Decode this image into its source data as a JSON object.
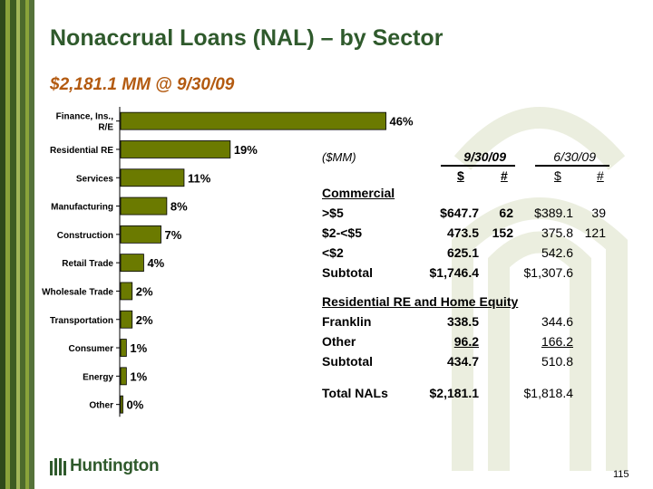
{
  "slide": {
    "title": "Nonaccrual Loans (NAL) – by Sector",
    "subtitle": "$2,181.1 MM @ 9/30/09",
    "page_number": "115",
    "logo_text": "Huntington",
    "colors": {
      "title_green": "#2f5a2c",
      "subtitle_orange": "#b35a10",
      "bar_fill": "#6b7a00",
      "stripe_dark": "#2f4a1a",
      "stripe_light": "#8aa33a"
    }
  },
  "chart_data": {
    "type": "bar",
    "orientation": "horizontal",
    "categories": [
      "Finance, Ins., R/E",
      "Residential RE",
      "Services",
      "Manufacturing",
      "Construction",
      "Retail Trade",
      "Wholesale Trade",
      "Transportation",
      "Consumer",
      "Energy",
      "Other"
    ],
    "values": [
      46,
      19,
      11,
      8,
      7,
      4,
      2,
      2,
      1,
      1,
      0
    ],
    "data_labels": [
      "46%",
      "19%",
      "11%",
      "8%",
      "7%",
      "4%",
      "2%",
      "2%",
      "1%",
      "1%",
      "0%"
    ],
    "xlim": [
      0,
      50
    ],
    "grid": false,
    "legend": "none",
    "title": "",
    "xlabel": "",
    "ylabel": ""
  },
  "table": {
    "unit_label": "($MM)",
    "period1": "9/30/09",
    "period2": "6/30/09",
    "col_dollar": "$",
    "col_count": "#",
    "sections": [
      {
        "header": "Commercial",
        "rows": [
          {
            "label": ">$5",
            "p1_amount": "$647.7",
            "p1_count": "62",
            "p2_amount": "$389.1",
            "p2_count": "39"
          },
          {
            "label": "$2-<$5",
            "p1_amount": "473.5",
            "p1_count": "152",
            "p2_amount": "375.8",
            "p2_count": "121"
          },
          {
            "label": "<$2",
            "p1_amount": "625.1",
            "p1_count": "",
            "p2_amount": "542.6",
            "p2_count": ""
          },
          {
            "label": "Subtotal",
            "p1_amount": "$1,746.4",
            "p1_count": "",
            "p2_amount": "$1,307.6",
            "p2_count": ""
          }
        ]
      },
      {
        "header": "Residential RE and Home Equity",
        "rows": [
          {
            "label": "Franklin",
            "p1_amount": "338.5",
            "p1_count": "",
            "p2_amount": "344.6",
            "p2_count": ""
          },
          {
            "label": "Other",
            "p1_amount": "96.2",
            "p1_count": "",
            "p2_amount": "166.2",
            "p2_count": ""
          },
          {
            "label": "Subtotal",
            "p1_amount": "434.7",
            "p1_count": "",
            "p2_amount": "510.8",
            "p2_count": ""
          }
        ]
      }
    ],
    "total": {
      "label": "Total NALs",
      "p1_amount": "$2,181.1",
      "p2_amount": "$1,818.4"
    }
  }
}
